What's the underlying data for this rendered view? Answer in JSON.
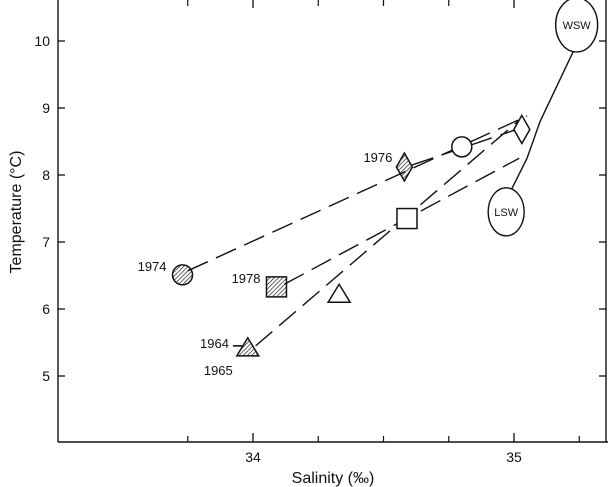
{
  "chart_data": {
    "type": "scatter",
    "title": "",
    "xlabel": "Salinity (‰)",
    "ylabel": "Temperature (°C)",
    "xlim": [
      33.5,
      35.35
    ],
    "ylim": [
      4,
      10.5
    ],
    "xticks": [
      {
        "value": 34,
        "label": "34"
      },
      {
        "value": 35,
        "label": "35"
      }
    ],
    "xminor": [
      33.75,
      34.25,
      34.5,
      34.75,
      35.25
    ],
    "yticks": [
      {
        "value": 5,
        "label": "5"
      },
      {
        "value": 6,
        "label": "6"
      },
      {
        "value": 7,
        "label": "7"
      },
      {
        "value": 8,
        "label": "8"
      },
      {
        "value": 9,
        "label": "9"
      },
      {
        "value": 10,
        "label": "10"
      }
    ],
    "grid": false,
    "legend": "none",
    "points": [
      {
        "name": "1974",
        "marker": "circle-hatched",
        "x": 33.73,
        "y": 6.51,
        "label": "1974",
        "label_side": "left"
      },
      {
        "name": "1978",
        "marker": "square-hatched",
        "x": 34.09,
        "y": 6.33,
        "label": "1978",
        "label_side": "left"
      },
      {
        "name": "1964",
        "marker": "small-dash",
        "x": 33.95,
        "y": 5.45,
        "label": "1964",
        "label_side": "left"
      },
      {
        "name": "1965",
        "marker": "triangle-hatched",
        "x": 33.98,
        "y": 5.42,
        "label": "1965",
        "label_side": "below-left"
      },
      {
        "name": "1976",
        "marker": "diamond-hatched",
        "x": 34.58,
        "y": 8.12,
        "label": "1976",
        "label_side": "left"
      },
      {
        "name": "open-circle",
        "marker": "circle-open",
        "x": 34.8,
        "y": 8.42,
        "label": ""
      },
      {
        "name": "open-diamond",
        "marker": "diamond-open",
        "x": 35.03,
        "y": 8.68,
        "label": ""
      },
      {
        "name": "open-square",
        "marker": "square-open",
        "x": 34.59,
        "y": 7.35,
        "label": ""
      },
      {
        "name": "open-triangle",
        "marker": "triangle-open",
        "x": 34.33,
        "y": 6.22,
        "label": ""
      }
    ],
    "dashed_lines": [
      {
        "name": "line-1974",
        "from": [
          33.75,
          6.57
        ],
        "to": [
          35.05,
          8.88
        ]
      },
      {
        "name": "line-1978",
        "from": [
          34.12,
          6.37
        ],
        "to": [
          35.02,
          8.25
        ]
      },
      {
        "name": "line-1965",
        "from": [
          34.01,
          5.45
        ],
        "to": [
          35.03,
          8.85
        ]
      },
      {
        "name": "line-1976",
        "from": [
          34.61,
          8.15
        ],
        "to": [
          35.01,
          8.68
        ]
      }
    ],
    "solid_lines": [
      {
        "name": "mixing-line-lsw-wsw",
        "points": [
          [
            34.96,
            7.55
          ],
          [
            35.05,
            8.25
          ],
          [
            35.1,
            8.8
          ],
          [
            35.24,
            9.95
          ]
        ]
      }
    ],
    "annotations": [
      {
        "name": "water-mass-lsw",
        "text": "LSW",
        "x": 34.97,
        "y": 7.45
      },
      {
        "name": "water-mass-wsw",
        "text": "WSW",
        "x": 35.24,
        "y": 10.24
      }
    ]
  }
}
